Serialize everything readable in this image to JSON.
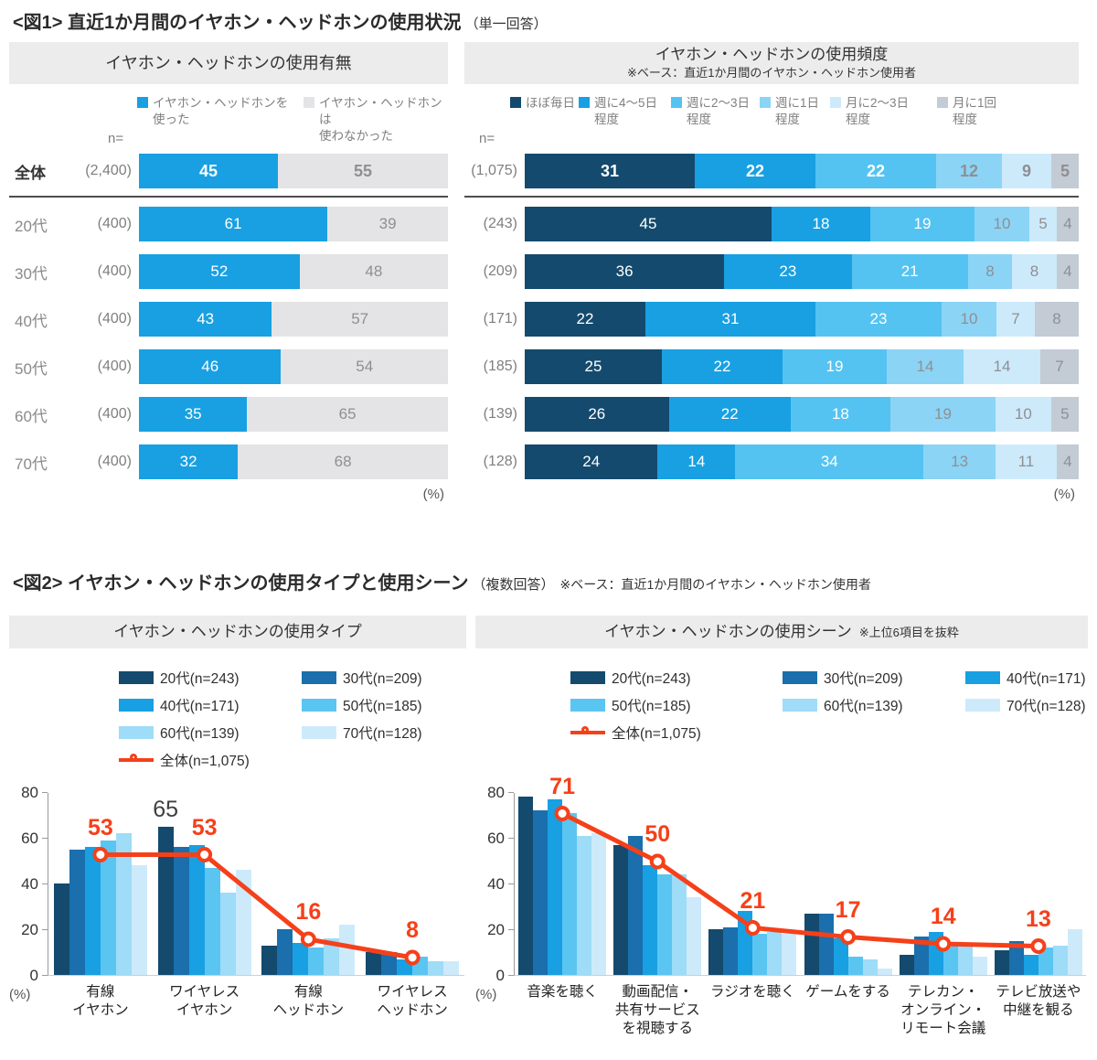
{
  "colors": {
    "used_blue": "#18A0E2",
    "not_used_gray": "#E4E4E6",
    "freq": [
      "#144A6E",
      "#18A0E2",
      "#54C3F1",
      "#8BD4F6",
      "#CDEAFB",
      "#C3CBD5"
    ],
    "ages": [
      "#144A6E",
      "#1A6FAC",
      "#18A0E2",
      "#5BC5F2",
      "#9EDCF8",
      "#CDEAFB"
    ],
    "overall_red": "#F5401A",
    "header_bg": "#ECECEC"
  },
  "fig1": {
    "title": "<図1> 直近1か月間のイヤホン・ヘッドホンの使用状況",
    "subtitle": "（単一回答）",
    "left": {
      "header": "イヤホン・ヘッドホンの使用有無",
      "n_label": "n=",
      "legend": [
        {
          "line1": "イヤホン・ヘッドホンを",
          "line2": "使った"
        },
        {
          "line1": "イヤホン・ヘッドホンは",
          "line2": "使わなかった"
        }
      ],
      "percent_label": "(%)"
    },
    "right": {
      "header": "イヤホン・ヘッドホンの使用頻度",
      "note": "※ベース：直近1か月間のイヤホン・ヘッドホン使用者",
      "n_label": "n=",
      "legend": [
        {
          "line1": "ほぼ毎日",
          "line2": ""
        },
        {
          "line1": "週に4～5日",
          "line2": "程度"
        },
        {
          "line1": "週に2～3日",
          "line2": "程度"
        },
        {
          "line1": "週に1日",
          "line2": "程度"
        },
        {
          "line1": "月に2～3日",
          "line2": "程度"
        },
        {
          "line1": "月に1回",
          "line2": "程度"
        }
      ],
      "percent_label": "(%)"
    }
  },
  "fig2": {
    "title": "<図2> イヤホン・ヘッドホンの使用タイプと使用シーン",
    "subtitle": "（複数回答）",
    "note": "※ベース：直近1か月間のイヤホン・ヘッドホン使用者",
    "left": {
      "header": "イヤホン・ヘッドホンの使用タイプ",
      "percent_label": "(%)"
    },
    "right": {
      "header": "イヤホン・ヘッドホンの使用シーン",
      "note": "※上位6項目を抜粋",
      "percent_label": "(%)"
    }
  },
  "chart_data": [
    {
      "id": "usage-yesno",
      "type": "stacked-bar-horizontal",
      "title": "イヤホン・ヘッドホンの使用有無",
      "unit": "%",
      "categories": [
        "全体",
        "20代",
        "30代",
        "40代",
        "50代",
        "60代",
        "70代"
      ],
      "n": [
        "(2,400)",
        "(400)",
        "(400)",
        "(400)",
        "(400)",
        "(400)",
        "(400)"
      ],
      "series": [
        {
          "name": "イヤホン・ヘッドホンを使った",
          "color": "#18A0E2",
          "values": [
            45,
            61,
            52,
            43,
            46,
            35,
            32
          ]
        },
        {
          "name": "イヤホン・ヘッドホンは使わなかった",
          "color": "#E4E4E6",
          "values": [
            55,
            39,
            48,
            57,
            54,
            65,
            68
          ]
        }
      ]
    },
    {
      "id": "usage-frequency",
      "type": "stacked-bar-horizontal",
      "title": "イヤホン・ヘッドホンの使用頻度",
      "base_note": "※ベース：直近1か月間のイヤホン・ヘッドホン使用者",
      "unit": "%",
      "categories": [
        "全体",
        "20代",
        "30代",
        "40代",
        "50代",
        "60代",
        "70代"
      ],
      "n": [
        "(1,075)",
        "(243)",
        "(209)",
        "(171)",
        "(185)",
        "(139)",
        "(128)"
      ],
      "series": [
        {
          "name": "ほぼ毎日",
          "color": "#144A6E",
          "values": [
            31,
            45,
            36,
            22,
            25,
            26,
            24
          ]
        },
        {
          "name": "週に4～5日程度",
          "color": "#18A0E2",
          "values": [
            22,
            18,
            23,
            31,
            22,
            22,
            14
          ]
        },
        {
          "name": "週に2～3日程度",
          "color": "#54C3F1",
          "values": [
            22,
            19,
            21,
            23,
            19,
            18,
            34
          ]
        },
        {
          "name": "週に1日程度",
          "color": "#8BD4F6",
          "values": [
            12,
            10,
            8,
            10,
            14,
            19,
            13
          ]
        },
        {
          "name": "月に2～3日程度",
          "color": "#CDEAFB",
          "values": [
            9,
            5,
            8,
            7,
            14,
            10,
            11
          ]
        },
        {
          "name": "月に1回程度",
          "color": "#C3CBD5",
          "values": [
            5,
            4,
            4,
            8,
            7,
            5,
            4
          ]
        }
      ]
    },
    {
      "id": "usage-type",
      "type": "grouped-bar-vertical",
      "title": "イヤホン・ヘッドホンの使用タイプ",
      "unit": "%",
      "ylim": [
        0,
        80
      ],
      "yticks": [
        0,
        20,
        40,
        60,
        80
      ],
      "categories": [
        "有線\nイヤホン",
        "ワイヤレス\nイヤホン",
        "有線\nヘッドホン",
        "ワイヤレス\nヘッドホン"
      ],
      "series": [
        {
          "name": "20代(n=243)",
          "color": "#144A6E",
          "values": [
            40,
            65,
            13,
            10
          ]
        },
        {
          "name": "30代(n=209)",
          "color": "#1A6FAC",
          "values": [
            55,
            56,
            20,
            10
          ]
        },
        {
          "name": "40代(n=171)",
          "color": "#18A0E2",
          "values": [
            56,
            57,
            14,
            7
          ]
        },
        {
          "name": "50代(n=185)",
          "color": "#5BC5F2",
          "values": [
            59,
            47,
            12,
            8
          ]
        },
        {
          "name": "60代(n=139)",
          "color": "#9EDCF8",
          "values": [
            62,
            36,
            16,
            6
          ]
        },
        {
          "name": "70代(n=128)",
          "color": "#CDEAFB",
          "values": [
            48,
            46,
            22,
            6
          ]
        }
      ],
      "line_series": {
        "name": "全体(n=1,075)",
        "color": "#F5401A",
        "values": [
          53,
          53,
          16,
          8
        ]
      },
      "line_labels": [
        "53",
        "53",
        "16",
        "8"
      ],
      "annotations": [
        {
          "group": 1,
          "bar": 0,
          "text": "65"
        }
      ]
    },
    {
      "id": "usage-scene",
      "type": "grouped-bar-vertical",
      "title": "イヤホン・ヘッドホンの使用シーン",
      "note": "※上位6項目を抜粋",
      "unit": "%",
      "ylim": [
        0,
        80
      ],
      "yticks": [
        0,
        20,
        40,
        60,
        80
      ],
      "categories": [
        "音楽を聴く",
        "動画配信・\n共有サービス\nを視聴する",
        "ラジオを聴く",
        "ゲームをする",
        "テレカン・\nオンライン・\nリモート会議",
        "テレビ放送や\n中継を観る"
      ],
      "series": [
        {
          "name": "20代(n=243)",
          "color": "#144A6E",
          "values": [
            78,
            57,
            20,
            27,
            9,
            11
          ]
        },
        {
          "name": "30代(n=209)",
          "color": "#1A6FAC",
          "values": [
            72,
            61,
            21,
            27,
            17,
            15
          ]
        },
        {
          "name": "40代(n=171)",
          "color": "#18A0E2",
          "values": [
            77,
            48,
            28,
            16,
            19,
            9
          ]
        },
        {
          "name": "50代(n=185)",
          "color": "#5BC5F2",
          "values": [
            71,
            44,
            18,
            8,
            14,
            12
          ]
        },
        {
          "name": "60代(n=139)",
          "color": "#9EDCF8",
          "values": [
            61,
            44,
            19,
            7,
            13,
            13
          ]
        },
        {
          "name": "70代(n=128)",
          "color": "#CDEAFB",
          "values": [
            62,
            34,
            18,
            3,
            8,
            20
          ]
        }
      ],
      "line_series": {
        "name": "全体(n=1,075)",
        "color": "#F5401A",
        "values": [
          71,
          50,
          21,
          17,
          14,
          13
        ]
      },
      "line_labels": [
        "71",
        "50",
        "21",
        "17",
        "14",
        "13"
      ]
    }
  ]
}
